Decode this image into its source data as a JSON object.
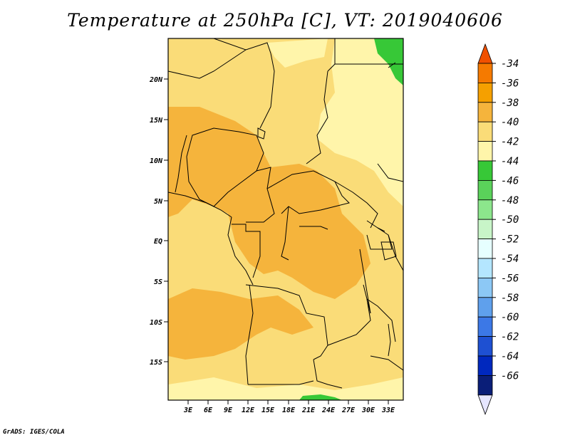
{
  "title": "Temperature at 250hPa [C], VT: 2019040606",
  "credit": "GrADS: IGES/COLA",
  "map": {
    "lat_ticks": [
      "20N",
      "15N",
      "10N",
      "5N",
      "EQ",
      "5S",
      "10S",
      "15S"
    ],
    "lon_ticks": [
      "3E",
      "6E",
      "9E",
      "12E",
      "15E",
      "18E",
      "21E",
      "24E",
      "27E",
      "30E",
      "33E"
    ]
  },
  "colorbar": {
    "labels": [
      "-34",
      "-36",
      "-38",
      "-40",
      "-42",
      "-44",
      "-46",
      "-48",
      "-50",
      "-52",
      "-54",
      "-56",
      "-58",
      "-60",
      "-62",
      "-64",
      "-66"
    ],
    "colors": [
      "#f05000",
      "#f57a00",
      "#f5a000",
      "#f5b43c",
      "#fadc78",
      "#fff5aa",
      "#37c837",
      "#5ad25a",
      "#8ce68c",
      "#c8f5c8",
      "#e6ffff",
      "#b4e6ff",
      "#8cc8f5",
      "#5fa0ec",
      "#3c78e6",
      "#1e50d2",
      "#0028be",
      "#0a1e78",
      "#e6e6ff"
    ]
  }
}
